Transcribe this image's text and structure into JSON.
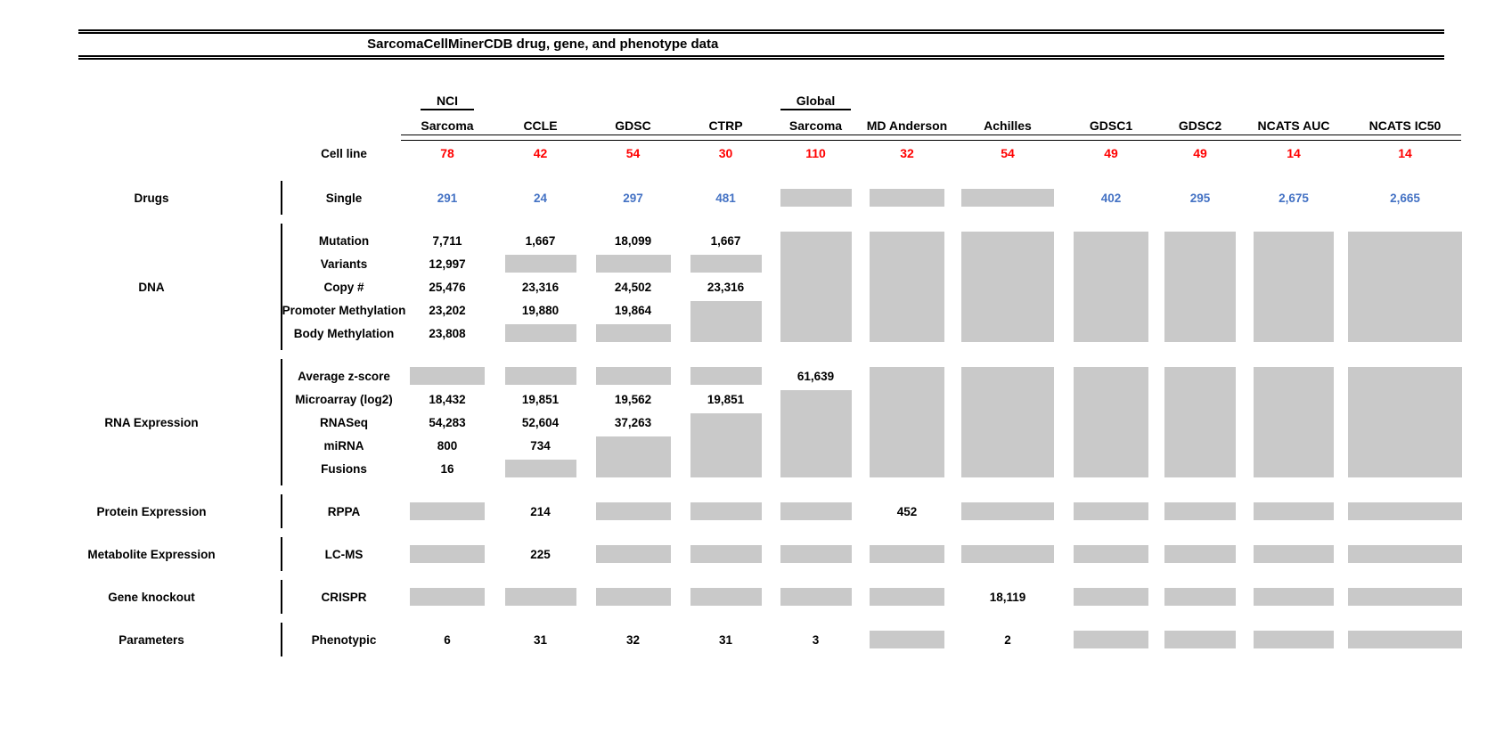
{
  "colors": {
    "cell_line_red": "#FF0000",
    "drug_count_blue": "#4472C4",
    "no_data_gray": "#C9C9C9",
    "text_black": "#000000"
  },
  "chart_data": {
    "type": "table",
    "title": "SarcomaCellMinerCDB drug, gene, and phenotype data",
    "layout_note": "null cell value renders as a gray box; consecutive null rows in a column merge into one tall gray block",
    "columns": [
      {
        "top": "NCI",
        "name": "Sarcoma"
      },
      {
        "top": "",
        "name": "CCLE"
      },
      {
        "top": "",
        "name": "GDSC"
      },
      {
        "top": "",
        "name": "CTRP"
      },
      {
        "top": "Global",
        "name": "Sarcoma"
      },
      {
        "top": "",
        "name": "MD Anderson"
      },
      {
        "top": "",
        "name": "Achilles"
      },
      {
        "top": "",
        "name": "GDSC1"
      },
      {
        "top": "",
        "name": "GDSC2"
      },
      {
        "top": "",
        "name": "NCATS AUC"
      },
      {
        "top": "",
        "name": "NCATS IC50"
      }
    ],
    "cell_line_row": {
      "label": "Cell line",
      "counts": [
        "78",
        "42",
        "54",
        "30",
        "110",
        "32",
        "54",
        "49",
        "49",
        "14",
        "14"
      ]
    },
    "sections": [
      {
        "category": "Drugs",
        "value_color": "blue",
        "rows": [
          {
            "label": "Single",
            "values": [
              "291",
              "24",
              "297",
              "481",
              null,
              null,
              null,
              "402",
              "295",
              "2,675",
              "2,665"
            ]
          }
        ]
      },
      {
        "category": "DNA",
        "rows": [
          {
            "label": "Mutation",
            "values": [
              "7,711",
              "1,667",
              "18,099",
              "1,667",
              null,
              null,
              null,
              null,
              null,
              null,
              null
            ]
          },
          {
            "label": "Variants",
            "values": [
              "12,997",
              null,
              null,
              null,
              null,
              null,
              null,
              null,
              null,
              null,
              null
            ]
          },
          {
            "label": "Copy #",
            "values": [
              "25,476",
              "23,316",
              "24,502",
              "23,316",
              null,
              null,
              null,
              null,
              null,
              null,
              null
            ]
          },
          {
            "label": "Promoter Methylation",
            "values": [
              "23,202",
              "19,880",
              "19,864",
              null,
              null,
              null,
              null,
              null,
              null,
              null,
              null
            ]
          },
          {
            "label": "Body Methylation",
            "values": [
              "23,808",
              null,
              null,
              null,
              null,
              null,
              null,
              null,
              null,
              null,
              null
            ]
          }
        ]
      },
      {
        "category": "RNA Expression",
        "rows": [
          {
            "label": "Average z-score",
            "values": [
              null,
              null,
              null,
              null,
              "61,639",
              null,
              null,
              null,
              null,
              null,
              null
            ]
          },
          {
            "label": "Microarray (log2)",
            "values": [
              "18,432",
              "19,851",
              "19,562",
              "19,851",
              null,
              null,
              null,
              null,
              null,
              null,
              null
            ]
          },
          {
            "label": "RNASeq",
            "values": [
              "54,283",
              "52,604",
              "37,263",
              null,
              null,
              null,
              null,
              null,
              null,
              null,
              null
            ]
          },
          {
            "label": "miRNA",
            "values": [
              "800",
              "734",
              null,
              null,
              null,
              null,
              null,
              null,
              null,
              null,
              null
            ]
          },
          {
            "label": "Fusions",
            "values": [
              "16",
              null,
              null,
              null,
              null,
              null,
              null,
              null,
              null,
              null,
              null
            ]
          }
        ]
      },
      {
        "category": "Protein Expression",
        "rows": [
          {
            "label": "RPPA",
            "values": [
              null,
              "214",
              null,
              null,
              null,
              "452",
              null,
              null,
              null,
              null,
              null
            ]
          }
        ]
      },
      {
        "category": "Metabolite Expression",
        "rows": [
          {
            "label": "LC-MS",
            "values": [
              null,
              "225",
              null,
              null,
              null,
              null,
              null,
              null,
              null,
              null,
              null
            ]
          }
        ]
      },
      {
        "category": "Gene knockout",
        "rows": [
          {
            "label": "CRISPR",
            "values": [
              null,
              null,
              null,
              null,
              null,
              null,
              "18,119",
              null,
              null,
              null,
              null
            ]
          }
        ]
      },
      {
        "category": "Parameters",
        "rows": [
          {
            "label": "Phenotypic",
            "values": [
              "6",
              "31",
              "32",
              "31",
              "3",
              null,
              "2",
              null,
              null,
              null,
              null
            ]
          }
        ]
      }
    ]
  }
}
